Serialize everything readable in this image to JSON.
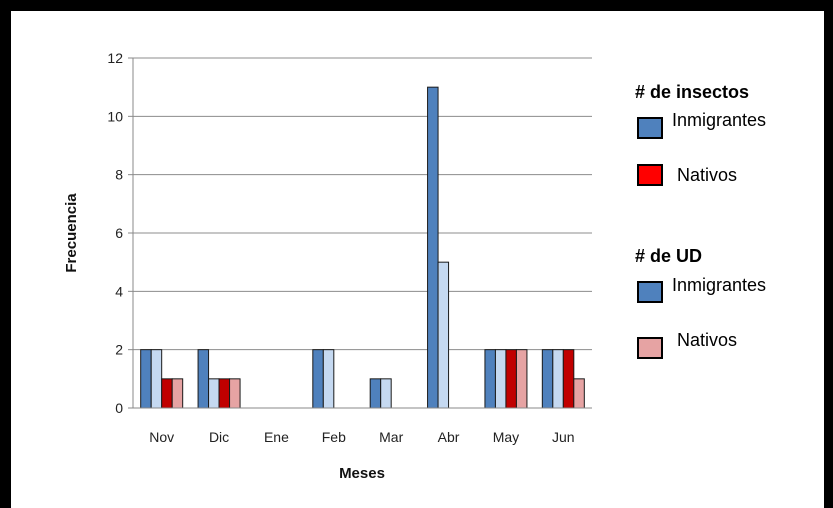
{
  "chart_data": {
    "type": "bar",
    "title": "",
    "xlabel": "Meses",
    "ylabel": "Frecuencia",
    "categories": [
      "Nov",
      "Dic",
      "Ene",
      "Feb",
      "Mar",
      "Abr",
      "May",
      "Jun"
    ],
    "ylim": [
      0,
      12
    ],
    "yticks": [
      "0",
      "2",
      "4",
      "6",
      "8",
      "10",
      "12"
    ],
    "grid": true,
    "legend_position": "right",
    "series": [
      {
        "name": "Inmigrantes",
        "group": "# de insectos",
        "color": "#4f81bd",
        "values": [
          2,
          2,
          0,
          2,
          1,
          11,
          2,
          2
        ]
      },
      {
        "name": "Inmigrantes",
        "group": "# de UD",
        "color": "#c5d9f1",
        "values": [
          2,
          1,
          0,
          2,
          1,
          5,
          2,
          2
        ]
      },
      {
        "name": "Nativos",
        "group": "# de insectos",
        "color": "#c00000",
        "values": [
          1,
          1,
          0,
          0,
          0,
          0,
          2,
          2
        ]
      },
      {
        "name": "Nativos",
        "group": "# de UD",
        "color": "#e6a3a3",
        "values": [
          1,
          1,
          0,
          0,
          0,
          0,
          2,
          1
        ]
      }
    ]
  },
  "legend": {
    "groups": [
      {
        "title": "# de insectos",
        "items": [
          {
            "label": "Inmigrantes",
            "color": "#4f81bd"
          },
          {
            "label": "Nativos",
            "color": "#ff0000"
          }
        ]
      },
      {
        "title": "# de UD",
        "items": [
          {
            "label": "Inmigrantes",
            "color": "#4f81bd"
          },
          {
            "label": "Nativos",
            "color": "#e6a3a3"
          }
        ]
      }
    ]
  }
}
